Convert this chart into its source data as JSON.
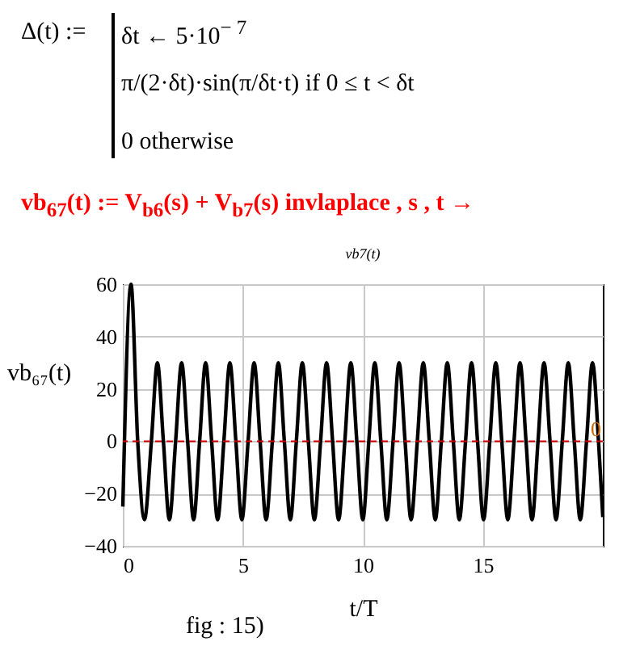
{
  "chart_data": {
    "type": "line",
    "title": "vb7(t)",
    "xlabel": "t/T",
    "ylabel": "vb₆₇(t)",
    "annotations": [
      "Δ(t) :=",
      "δt ← 5·10$^{− 7}$",
      "π/(2·δt)·sin(π/δt·t)  if  0 ≤ t < δt",
      "0   otherwise",
      "vb$_{67}$(t) := V$_{b6}$(s) + V$_{b7}$(s) invlaplace , s , t →",
      "fig : 15)"
    ],
    "xlim": [
      0,
      20
    ],
    "xticks": [
      0,
      5,
      10,
      15
    ],
    "ylim": [
      -40,
      60
    ],
    "yticks": [
      -40,
      -20,
      0,
      20,
      40,
      60
    ],
    "grid": true,
    "marker": "none",
    "line_style": "solid",
    "ref_lines": [
      {
        "axis": "y",
        "value": 0,
        "label": "0",
        "color": "#cc0000",
        "line_style": "dashed"
      }
    ],
    "series": [
      {
        "color": "#000000",
        "x": [
          0,
          0.34,
          0.62,
          0.9,
          1.19,
          1.44,
          1.69,
          1.94,
          2.2,
          2.45,
          2.7,
          2.95,
          3.2,
          3.45,
          3.7,
          3.95,
          4.21,
          4.46,
          4.71,
          4.96,
          5.22,
          5.47,
          5.72,
          5.97,
          6.23,
          6.48,
          6.73,
          6.98,
          7.23,
          7.48,
          7.73,
          7.98,
          8.24,
          8.49,
          8.74,
          8.99,
          9.25,
          9.5,
          9.75,
          10.0,
          10.25,
          10.5,
          10.75,
          11.0,
          11.26,
          11.51,
          11.76,
          12.01,
          12.27,
          12.52,
          12.77,
          13.02,
          13.27,
          13.52,
          13.77,
          14.02,
          14.28,
          14.53,
          14.78,
          15.03,
          15.29,
          15.54,
          15.79,
          16.04,
          16.3,
          16.55,
          16.8,
          17.05,
          17.3,
          17.55,
          17.8,
          18.05,
          18.31,
          18.56,
          18.81,
          19.06,
          19.32,
          19.57,
          19.82,
          20
        ],
        "values": [
          -25,
          60,
          0,
          -30,
          0,
          30,
          0,
          -30,
          0,
          30,
          0,
          -30,
          0,
          30,
          0,
          -30,
          0,
          30,
          0,
          -30,
          0,
          30,
          0,
          -30,
          0,
          30,
          0,
          -30,
          0,
          30,
          0,
          -30,
          0,
          30,
          0,
          -30,
          0,
          30,
          0,
          -30,
          0,
          30,
          0,
          -30,
          0,
          30,
          0,
          -30,
          0,
          30,
          0,
          -30,
          0,
          30,
          0,
          -30,
          0,
          30,
          0,
          -30,
          0,
          30,
          0,
          -30,
          0,
          30,
          0,
          -30,
          0,
          30,
          0,
          -30,
          0,
          30,
          0,
          -30,
          0,
          30,
          0,
          -29
        ]
      }
    ]
  }
}
